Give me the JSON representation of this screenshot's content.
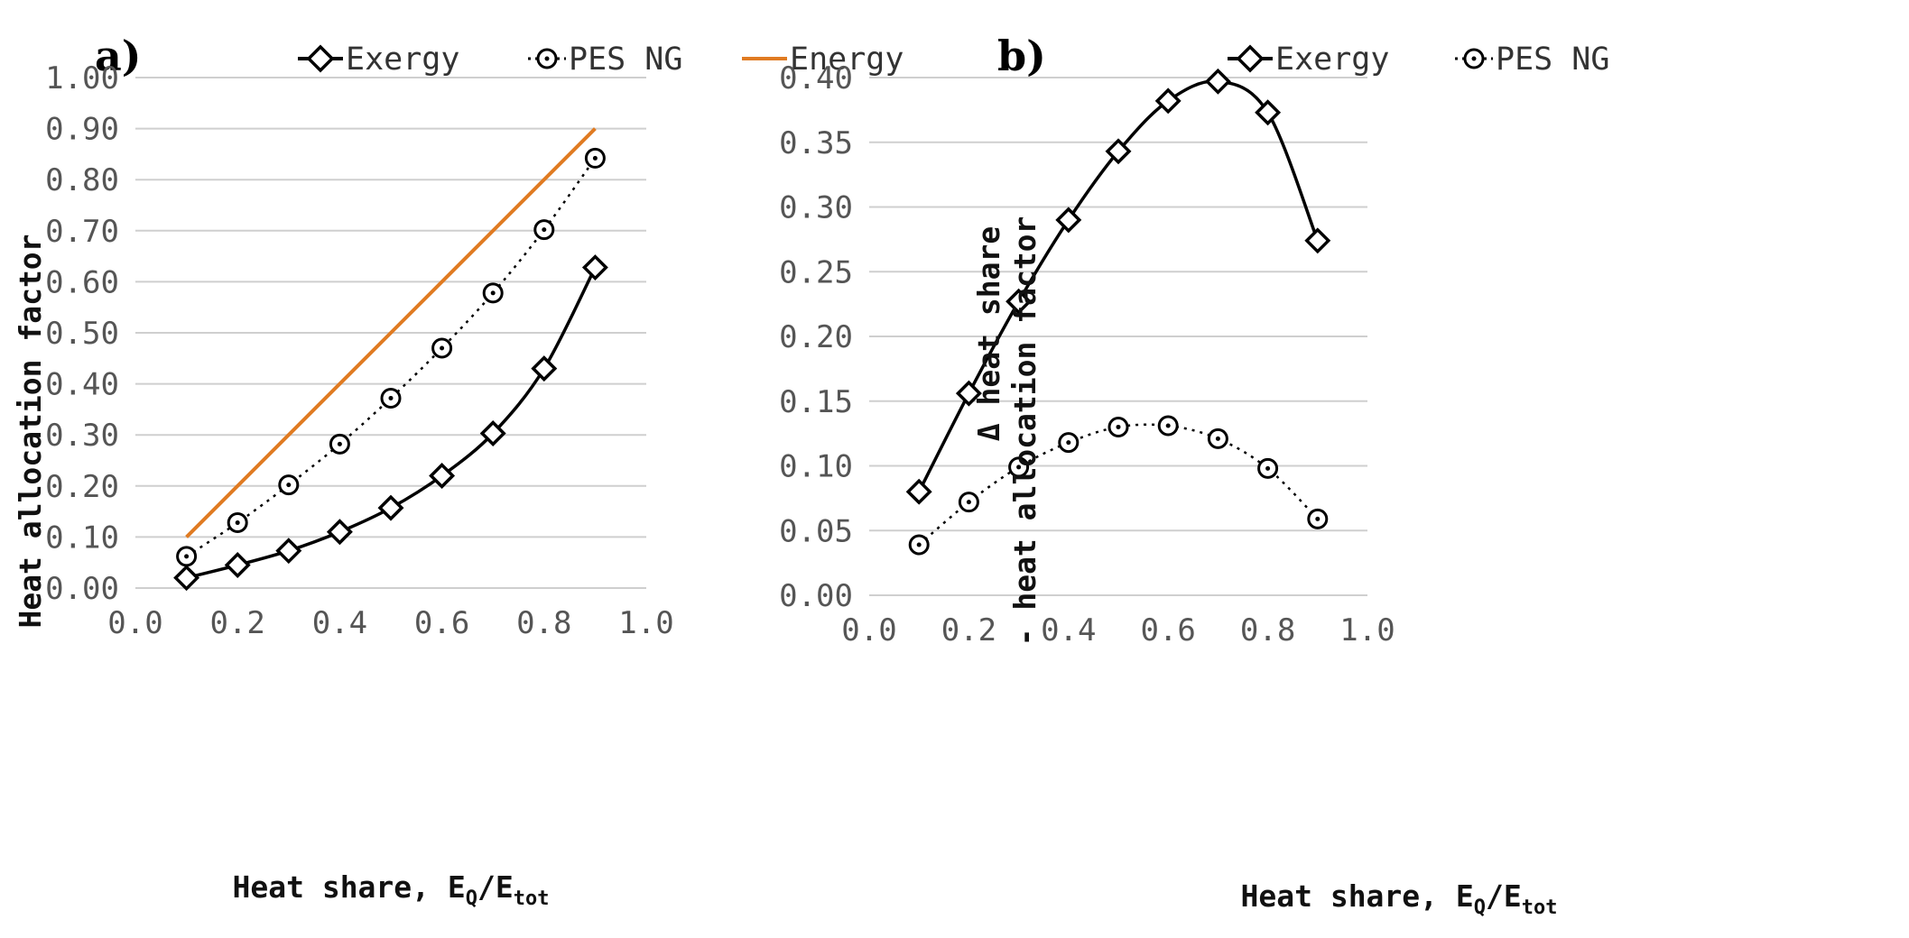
{
  "colors": {
    "exergy": "#000000",
    "pes_ng": "#000000",
    "energy": "#E07B22",
    "grid": "#cfcfcf",
    "tick": "#555555"
  },
  "chart_data": [
    {
      "type": "line",
      "panel_label": "a)",
      "x": [
        0.1,
        0.2,
        0.3,
        0.4,
        0.5,
        0.6,
        0.7,
        0.8,
        0.9
      ],
      "xlabel_main": "Heat share, E",
      "xlabel_sub1": "Q",
      "xlabel_mid": "/E",
      "xlabel_sub2": "tot",
      "ylabel": "Heat allocation factor",
      "xlim": [
        0.0,
        1.0
      ],
      "ylim": [
        0.0,
        1.0
      ],
      "xticks": [
        "0.0",
        "0.2",
        "0.4",
        "0.6",
        "0.8",
        "1.0"
      ],
      "yticks": [
        "0.00",
        "0.10",
        "0.20",
        "0.30",
        "0.40",
        "0.50",
        "0.60",
        "0.70",
        "0.80",
        "0.90",
        "1.00"
      ],
      "legend_position": "top",
      "series": [
        {
          "name": "Exergy",
          "marker": "diamond",
          "line": "solid",
          "values": [
            0.02,
            0.045,
            0.073,
            0.11,
            0.157,
            0.22,
            0.303,
            0.43,
            0.628
          ]
        },
        {
          "name": "PES NG",
          "marker": "circle",
          "line": "dotted",
          "values": [
            0.062,
            0.128,
            0.202,
            0.282,
            0.372,
            0.47,
            0.578,
            0.702,
            0.842
          ]
        },
        {
          "name": "Energy",
          "marker": "none",
          "line": "solid",
          "values": [
            0.1,
            0.2,
            0.3,
            0.4,
            0.5,
            0.6,
            0.7,
            0.8,
            0.9
          ]
        }
      ]
    },
    {
      "type": "line",
      "panel_label": "b)",
      "x": [
        0.1,
        0.2,
        0.3,
        0.4,
        0.5,
        0.6,
        0.7,
        0.8,
        0.9
      ],
      "xlabel_main": "Heat share, E",
      "xlabel_sub1": "Q",
      "xlabel_mid": "/E",
      "xlabel_sub2": "tot",
      "ylabel_line1": "Δ heat share",
      "ylabel_line2": "- heat allocation factor",
      "xlim": [
        0.0,
        1.0
      ],
      "ylim": [
        0.0,
        0.4
      ],
      "xticks": [
        "0.0",
        "0.2",
        "0.4",
        "0.6",
        "0.8",
        "1.0"
      ],
      "yticks": [
        "0.00",
        "0.05",
        "0.10",
        "0.15",
        "0.20",
        "0.25",
        "0.30",
        "0.35",
        "0.40"
      ],
      "legend_position": "top",
      "series": [
        {
          "name": "Exergy",
          "marker": "diamond",
          "line": "solid",
          "values": [
            0.08,
            0.156,
            0.227,
            0.29,
            0.343,
            0.382,
            0.397,
            0.373,
            0.274
          ]
        },
        {
          "name": "PES NG",
          "marker": "circle",
          "line": "dotted",
          "values": [
            0.039,
            0.072,
            0.099,
            0.118,
            0.13,
            0.131,
            0.121,
            0.098,
            0.059
          ]
        }
      ]
    }
  ]
}
